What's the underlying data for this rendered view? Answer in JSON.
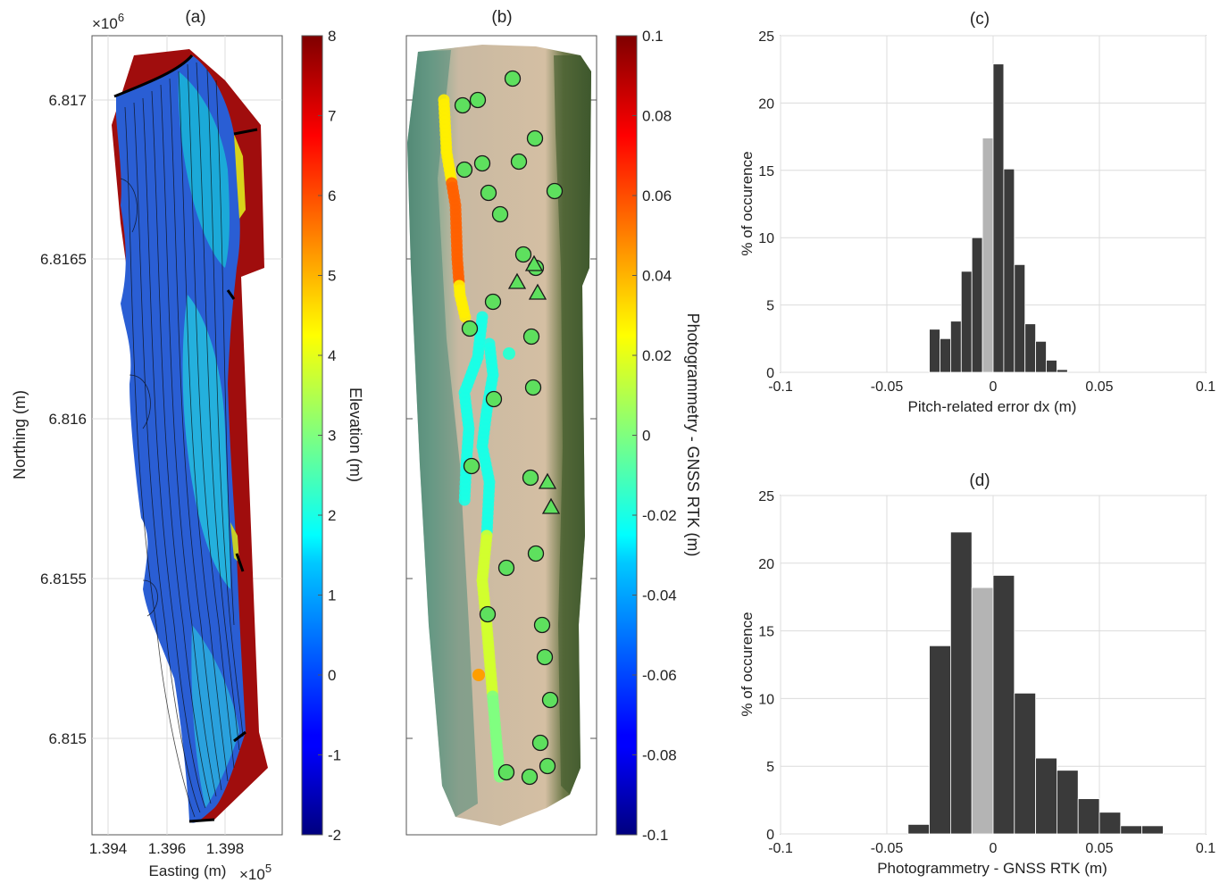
{
  "chart_data": [
    {
      "panel": "(a)",
      "type": "heatmap",
      "title": "(a)",
      "xlabel": "Easting (m)",
      "xlabel_exponent": "×10",
      "xlabel_exponent_power": "5",
      "ylabel": "Northing (m)",
      "ylabel_exponent": "×10",
      "ylabel_exponent_power": "6",
      "xticks": [
        "1.394",
        "1.396",
        "1.398"
      ],
      "xtick_values": [
        1.394,
        1.396,
        1.398
      ],
      "xlim": [
        1.3932,
        1.3995
      ],
      "yticks": [
        "6.817",
        "6.8165",
        "6.816",
        "6.8155",
        "6.815"
      ],
      "ytick_values": [
        6.817,
        6.8165,
        6.816,
        6.8155,
        6.815
      ],
      "ylim": [
        6.8147,
        6.8172
      ],
      "colorbar": {
        "label": "Elevation (m)",
        "ticks": [
          "8",
          "7",
          "6",
          "5",
          "4",
          "3",
          "2",
          "1",
          "0",
          "-1",
          "-2"
        ],
        "tick_values": [
          8,
          7,
          6,
          5,
          4,
          3,
          2,
          1,
          0,
          -1,
          -2
        ],
        "range": [
          -2,
          8
        ],
        "colormap": "jet"
      },
      "grid": true
    },
    {
      "panel": "(b)",
      "type": "scatter",
      "title": "(b)",
      "yticks_unlabeled": 5,
      "colorbar": {
        "label": "Photogrammetry - GNSS RTK (m)",
        "ticks": [
          "0.1",
          "0.08",
          "0.06",
          "0.04",
          "0.02",
          "0",
          "-0.02",
          "-0.04",
          "-0.06",
          "-0.08",
          "-0.1"
        ],
        "tick_values": [
          0.1,
          0.08,
          0.06,
          0.04,
          0.02,
          0,
          -0.02,
          -0.04,
          -0.06,
          -0.08,
          -0.1
        ],
        "range": [
          -0.1,
          0.1
        ],
        "colormap": "jet"
      },
      "markers": {
        "circle_count": 29,
        "triangle_count": 5,
        "color": "#5ee05e"
      }
    },
    {
      "panel": "(c)",
      "type": "bar",
      "title": "(c)",
      "xlabel": "Pitch-related error dx (m)",
      "ylabel": "% of occurence",
      "xticks": [
        "-0.1",
        "-0.05",
        "0",
        "0.05",
        "0.1"
      ],
      "xlim": [
        -0.1,
        0.1
      ],
      "yticks": [
        "0",
        "5",
        "10",
        "15",
        "20",
        "25"
      ],
      "ylim": [
        0,
        25
      ],
      "bin_width": 0.005,
      "bin_centers": [
        -0.0275,
        -0.0225,
        -0.0175,
        -0.0125,
        -0.0075,
        -0.0025,
        0.0025,
        0.0075,
        0.0125,
        0.0175,
        0.0225,
        0.0275,
        0.0325
      ],
      "values": [
        3.2,
        2.5,
        3.8,
        7.5,
        10.0,
        17.4,
        22.9,
        15.1,
        8.0,
        3.6,
        2.3,
        0.9,
        0.2
      ],
      "highlight_bin_center": -0.0025,
      "bar_color": "#3a3a3a",
      "highlight_color": "#b4b4b4",
      "grid": true
    },
    {
      "panel": "(d)",
      "type": "bar",
      "title": "(d)",
      "xlabel": "Photogrammetry - GNSS RTK (m)",
      "ylabel": "% of occurence",
      "xticks": [
        "-0.1",
        "-0.05",
        "0",
        "0.05",
        "0.1"
      ],
      "xlim": [
        -0.1,
        0.1
      ],
      "yticks": [
        "0",
        "5",
        "10",
        "15",
        "20",
        "25"
      ],
      "ylim": [
        0,
        25
      ],
      "bin_width": 0.01,
      "bin_centers": [
        -0.035,
        -0.025,
        -0.015,
        -0.005,
        0.005,
        0.015,
        0.025,
        0.035,
        0.045,
        0.055,
        0.065,
        0.075
      ],
      "values": [
        0.7,
        13.9,
        22.3,
        18.2,
        19.1,
        10.4,
        5.6,
        4.7,
        2.6,
        1.6,
        0.6,
        0.6
      ],
      "highlight_bin_center": -0.005,
      "bar_color": "#3a3a3a",
      "highlight_color": "#b4b4b4",
      "grid": true
    }
  ]
}
